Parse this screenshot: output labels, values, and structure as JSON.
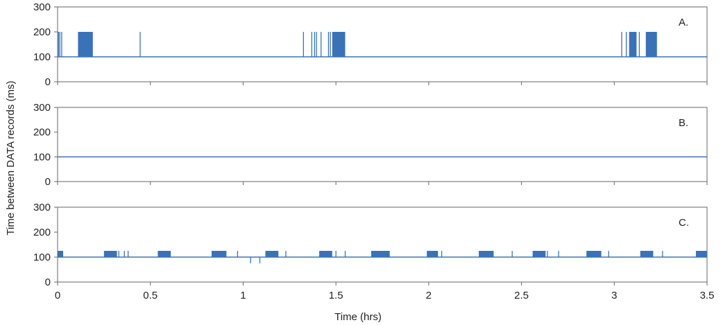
{
  "chart_data": {
    "type": "line",
    "xlabel": "Time (hrs)",
    "ylabel": "Time between DATA records (ms)",
    "xlim": [
      0,
      3.5
    ],
    "ylim": [
      0,
      300
    ],
    "x_ticks": [
      0,
      0.5,
      1,
      1.5,
      2,
      2.5,
      3,
      3.5
    ],
    "x_tick_labels": [
      "0",
      "0.5",
      "1",
      "1.5",
      "2",
      "2.5",
      "3",
      "3.5"
    ],
    "y_ticks": [
      0,
      100,
      200,
      300
    ],
    "y_tick_labels": [
      "0",
      "100",
      "200",
      "300"
    ],
    "grid": false,
    "series_color": "#3A72B8",
    "panels": [
      {
        "label": "A.",
        "baseline": 100,
        "spike_value": 200,
        "spikes": [
          0.005,
          0.012,
          0.022,
          0.445,
          1.325,
          1.37,
          1.385,
          1.395,
          1.42,
          1.46,
          1.47,
          3.04,
          3.065,
          3.135
        ],
        "dense_bursts": [
          {
            "start": 0.11,
            "end": 0.19,
            "value": 200
          },
          {
            "start": 1.48,
            "end": 1.55,
            "value": 200
          },
          {
            "start": 3.08,
            "end": 3.12,
            "value": 200
          },
          {
            "start": 3.17,
            "end": 3.23,
            "value": 200
          }
        ]
      },
      {
        "label": "B.",
        "baseline": 100,
        "spike_value": 100,
        "spikes": [],
        "dense_bursts": []
      },
      {
        "label": "C.",
        "baseline": 100,
        "spike_value": 125,
        "low_value": 75,
        "spikes": [
          0.33,
          0.36,
          0.38,
          0.97,
          1.23,
          1.5,
          1.55,
          2.07,
          2.45,
          2.7,
          2.64,
          2.97,
          3.26
        ],
        "dips": [
          1.04,
          1.09
        ],
        "dense_bursts": [
          {
            "start": 0.0,
            "end": 0.03,
            "value": 125
          },
          {
            "start": 0.25,
            "end": 0.32,
            "value": 125
          },
          {
            "start": 0.54,
            "end": 0.61,
            "value": 125
          },
          {
            "start": 0.83,
            "end": 0.91,
            "value": 125
          },
          {
            "start": 1.12,
            "end": 1.19,
            "value": 125
          },
          {
            "start": 1.41,
            "end": 1.48,
            "value": 125
          },
          {
            "start": 1.69,
            "end": 1.79,
            "value": 125
          },
          {
            "start": 1.99,
            "end": 2.05,
            "value": 125
          },
          {
            "start": 2.27,
            "end": 2.35,
            "value": 125
          },
          {
            "start": 2.56,
            "end": 2.63,
            "value": 125
          },
          {
            "start": 2.85,
            "end": 2.93,
            "value": 125
          },
          {
            "start": 3.14,
            "end": 3.21,
            "value": 125
          },
          {
            "start": 3.44,
            "end": 3.5,
            "value": 125
          }
        ]
      }
    ]
  }
}
